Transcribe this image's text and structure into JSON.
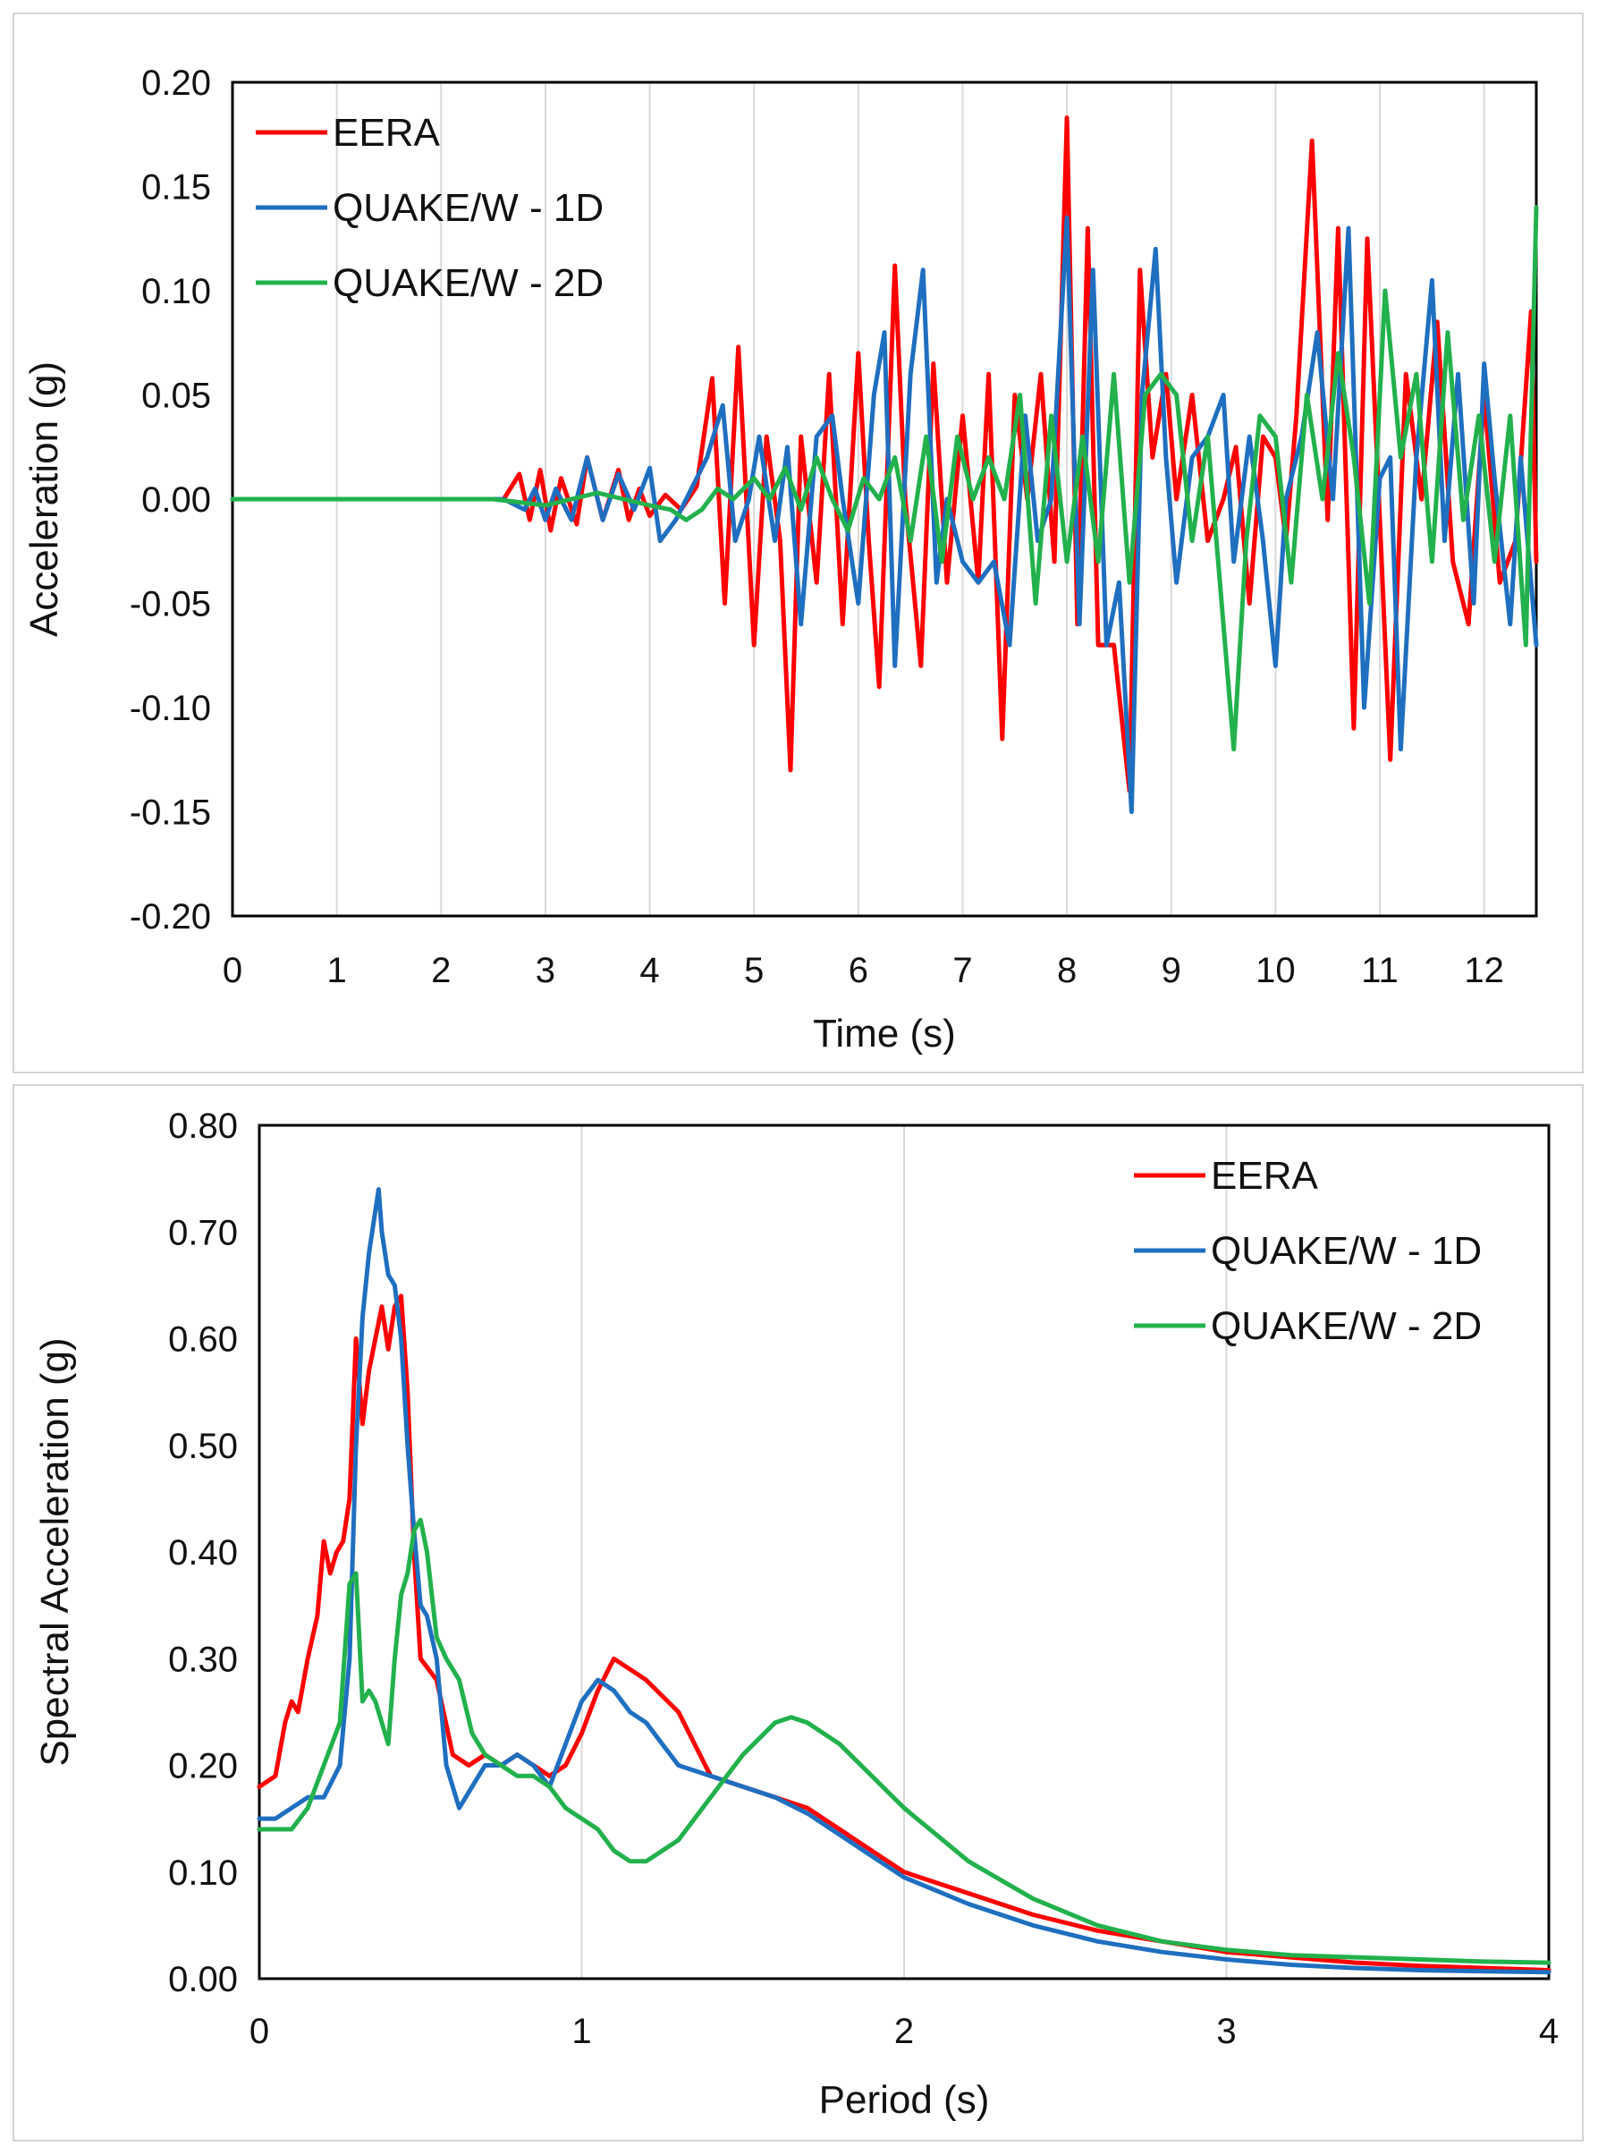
{
  "chart_data": [
    {
      "type": "line",
      "title": "",
      "xlabel": "Time (s)",
      "ylabel": "Acceleration (g)",
      "xlim": [
        0,
        12.5
      ],
      "ylim": [
        -0.2,
        0.2
      ],
      "x_ticks": [
        "0",
        "1",
        "2",
        "3",
        "4",
        "5",
        "6",
        "7",
        "8",
        "9",
        "10",
        "11",
        "12"
      ],
      "x_tick_values": [
        0,
        1,
        2,
        3,
        4,
        5,
        6,
        7,
        8,
        9,
        10,
        11,
        12
      ],
      "y_ticks": [
        "0.20",
        "0.15",
        "0.10",
        "0.05",
        "0.00",
        "-0.05",
        "-0.10",
        "-0.15",
        "-0.20"
      ],
      "y_tick_values": [
        0.2,
        0.15,
        0.1,
        0.05,
        0,
        -0.05,
        -0.1,
        -0.15,
        -0.2
      ],
      "grid": "vertical",
      "legend_position": "top-left",
      "series": [
        {
          "name": "EERA",
          "color": "#ff0000",
          "x": [
            0,
            2.6,
            2.75,
            2.85,
            2.95,
            3.05,
            3.15,
            3.3,
            3.4,
            3.55,
            3.7,
            3.8,
            3.9,
            4.0,
            4.15,
            4.3,
            4.45,
            4.6,
            4.72,
            4.85,
            5.0,
            5.12,
            5.25,
            5.35,
            5.45,
            5.6,
            5.72,
            5.85,
            6.0,
            6.1,
            6.2,
            6.35,
            6.45,
            6.6,
            6.72,
            6.85,
            7.0,
            7.15,
            7.25,
            7.38,
            7.5,
            7.62,
            7.75,
            7.88,
            8.0,
            8.1,
            8.2,
            8.3,
            8.45,
            8.6,
            8.7,
            8.82,
            8.95,
            9.05,
            9.2,
            9.35,
            9.5,
            9.62,
            9.75,
            9.88,
            10.0,
            10.1,
            10.2,
            10.35,
            10.5,
            10.6,
            10.75,
            10.88,
            11.0,
            11.1,
            11.25,
            11.4,
            11.55,
            11.7,
            11.85,
            12.0,
            12.15,
            12.3,
            12.45,
            12.5
          ],
          "y": [
            0,
            0,
            0.012,
            -0.01,
            0.014,
            -0.015,
            0.01,
            -0.012,
            0.02,
            -0.01,
            0.014,
            -0.01,
            0.005,
            -0.008,
            0.002,
            -0.005,
            0.006,
            0.058,
            -0.05,
            0.073,
            -0.07,
            0.03,
            -0.02,
            -0.13,
            0.03,
            -0.04,
            0.06,
            -0.06,
            0.07,
            -0.02,
            -0.09,
            0.112,
            0.0,
            -0.08,
            0.065,
            -0.04,
            0.04,
            -0.04,
            0.06,
            -0.115,
            0.05,
            0.0,
            0.06,
            -0.03,
            0.183,
            -0.06,
            0.13,
            -0.07,
            -0.07,
            -0.14,
            0.11,
            0.02,
            0.06,
            0.0,
            0.05,
            -0.02,
            0.0,
            0.025,
            -0.05,
            0.03,
            0.02,
            -0.02,
            0.04,
            0.172,
            -0.01,
            0.13,
            -0.11,
            0.125,
            -0.01,
            -0.125,
            0.06,
            0.0,
            0.085,
            -0.03,
            -0.06,
            0.05,
            -0.04,
            -0.02,
            0.09,
            -0.03
          ]
        },
        {
          "name": "QUAKE/W - 1D",
          "color": "#1f6fc0",
          "x": [
            0,
            2.6,
            2.8,
            2.9,
            3.0,
            3.1,
            3.25,
            3.4,
            3.55,
            3.7,
            3.85,
            4.0,
            4.1,
            4.25,
            4.4,
            4.55,
            4.7,
            4.82,
            4.95,
            5.05,
            5.2,
            5.32,
            5.45,
            5.6,
            5.75,
            5.85,
            6.0,
            6.15,
            6.25,
            6.35,
            6.5,
            6.62,
            6.75,
            6.85,
            7.0,
            7.15,
            7.3,
            7.45,
            7.6,
            7.72,
            7.85,
            8.0,
            8.12,
            8.25,
            8.38,
            8.5,
            8.62,
            8.72,
            8.85,
            8.95,
            9.05,
            9.2,
            9.35,
            9.5,
            9.6,
            9.75,
            9.88,
            10.0,
            10.1,
            10.25,
            10.4,
            10.55,
            10.7,
            10.85,
            11.0,
            11.1,
            11.2,
            11.35,
            11.5,
            11.62,
            11.75,
            11.9,
            12.0,
            12.1,
            12.25,
            12.35,
            12.5
          ],
          "y": [
            0,
            0,
            -0.005,
            0.005,
            -0.01,
            0.005,
            -0.01,
            0.02,
            -0.01,
            0.012,
            -0.005,
            0.015,
            -0.02,
            -0.01,
            0.005,
            0.02,
            0.045,
            -0.02,
            0.0,
            0.03,
            -0.02,
            0.025,
            -0.06,
            0.03,
            0.04,
            0.0,
            -0.05,
            0.05,
            0.08,
            -0.08,
            0.06,
            0.11,
            -0.04,
            0.0,
            -0.03,
            -0.04,
            -0.03,
            -0.07,
            0.04,
            -0.02,
            0.0,
            0.135,
            -0.06,
            0.11,
            -0.07,
            -0.04,
            -0.15,
            0.05,
            0.12,
            0.02,
            -0.04,
            0.02,
            0.03,
            0.05,
            -0.03,
            0.03,
            -0.02,
            -0.08,
            0.0,
            0.03,
            0.08,
            0.0,
            0.13,
            -0.1,
            0.01,
            0.02,
            -0.12,
            0.02,
            0.105,
            -0.02,
            0.06,
            -0.05,
            0.065,
            0.01,
            -0.06,
            0.02,
            -0.07
          ]
        },
        {
          "name": "QUAKE/W - 2D",
          "color": "#22b14c",
          "x": [
            0,
            2.5,
            3.0,
            3.5,
            4.0,
            4.2,
            4.35,
            4.5,
            4.65,
            4.8,
            5.0,
            5.15,
            5.3,
            5.45,
            5.6,
            5.75,
            5.9,
            6.05,
            6.2,
            6.35,
            6.5,
            6.65,
            6.8,
            6.95,
            7.1,
            7.25,
            7.4,
            7.55,
            7.7,
            7.85,
            8.0,
            8.15,
            8.3,
            8.45,
            8.6,
            8.75,
            8.9,
            9.05,
            9.2,
            9.35,
            9.5,
            9.6,
            9.72,
            9.85,
            10.0,
            10.15,
            10.3,
            10.45,
            10.6,
            10.75,
            10.9,
            11.05,
            11.2,
            11.35,
            11.5,
            11.65,
            11.8,
            11.95,
            12.1,
            12.25,
            12.4,
            12.5
          ],
          "y": [
            0,
            0,
            -0.003,
            0.003,
            -0.003,
            -0.005,
            -0.01,
            -0.005,
            0.005,
            0.0,
            0.01,
            0.0,
            0.015,
            -0.005,
            0.02,
            0.0,
            -0.015,
            0.01,
            0.0,
            0.02,
            -0.02,
            0.03,
            -0.03,
            0.03,
            0.0,
            0.02,
            0.0,
            0.05,
            -0.05,
            0.04,
            -0.03,
            0.03,
            -0.03,
            0.06,
            -0.04,
            0.05,
            0.06,
            0.05,
            -0.02,
            0.03,
            -0.06,
            -0.12,
            -0.02,
            0.04,
            0.03,
            -0.04,
            0.05,
            0.0,
            0.07,
            0.02,
            -0.05,
            0.1,
            0.02,
            0.06,
            -0.03,
            0.08,
            -0.01,
            0.04,
            -0.03,
            0.04,
            -0.07,
            0.14
          ]
        }
      ]
    },
    {
      "type": "line",
      "title": "",
      "xlabel": "Period (s)",
      "ylabel": "Spectral Acceleration (g)",
      "xlim": [
        0,
        4
      ],
      "ylim": [
        0,
        0.8
      ],
      "x_ticks": [
        "0",
        "1",
        "2",
        "3",
        "4"
      ],
      "x_tick_values": [
        0,
        1,
        2,
        3,
        4
      ],
      "y_ticks": [
        "0.80",
        "0.70",
        "0.60",
        "0.50",
        "0.40",
        "0.30",
        "0.20",
        "0.10",
        "0.00"
      ],
      "y_tick_values": [
        0.8,
        0.7,
        0.6,
        0.5,
        0.4,
        0.3,
        0.2,
        0.1,
        0
      ],
      "grid": "vertical",
      "legend_position": "top-right",
      "series": [
        {
          "name": "EERA",
          "color": "#ff0000",
          "x": [
            0,
            0.05,
            0.08,
            0.1,
            0.12,
            0.15,
            0.18,
            0.2,
            0.22,
            0.24,
            0.26,
            0.28,
            0.3,
            0.32,
            0.34,
            0.36,
            0.38,
            0.4,
            0.42,
            0.44,
            0.46,
            0.48,
            0.5,
            0.55,
            0.6,
            0.65,
            0.7,
            0.75,
            0.8,
            0.85,
            0.9,
            0.95,
            1.0,
            1.05,
            1.1,
            1.15,
            1.2,
            1.3,
            1.4,
            1.5,
            1.6,
            1.7,
            1.8,
            1.9,
            2.0,
            2.2,
            2.4,
            2.6,
            2.8,
            3.0,
            3.2,
            3.4,
            3.6,
            3.8,
            4.0
          ],
          "y": [
            0.18,
            0.19,
            0.24,
            0.26,
            0.25,
            0.3,
            0.34,
            0.41,
            0.38,
            0.4,
            0.41,
            0.45,
            0.6,
            0.52,
            0.57,
            0.6,
            0.63,
            0.59,
            0.63,
            0.64,
            0.55,
            0.4,
            0.3,
            0.28,
            0.21,
            0.2,
            0.21,
            0.2,
            0.21,
            0.2,
            0.19,
            0.2,
            0.23,
            0.27,
            0.3,
            0.29,
            0.28,
            0.25,
            0.19,
            0.18,
            0.17,
            0.16,
            0.14,
            0.12,
            0.1,
            0.08,
            0.06,
            0.045,
            0.035,
            0.025,
            0.02,
            0.015,
            0.012,
            0.01,
            0.008
          ]
        },
        {
          "name": "QUAKE/W - 1D",
          "color": "#1f6fc0",
          "x": [
            0,
            0.05,
            0.1,
            0.15,
            0.2,
            0.25,
            0.28,
            0.3,
            0.32,
            0.34,
            0.36,
            0.37,
            0.38,
            0.4,
            0.42,
            0.44,
            0.46,
            0.48,
            0.5,
            0.52,
            0.55,
            0.58,
            0.62,
            0.66,
            0.7,
            0.75,
            0.8,
            0.85,
            0.9,
            0.95,
            1.0,
            1.05,
            1.1,
            1.15,
            1.2,
            1.25,
            1.3,
            1.4,
            1.5,
            1.6,
            1.7,
            1.8,
            1.9,
            2.0,
            2.2,
            2.4,
            2.6,
            2.8,
            3.0,
            3.2,
            3.4,
            3.6,
            3.8,
            4.0
          ],
          "y": [
            0.15,
            0.15,
            0.16,
            0.17,
            0.17,
            0.2,
            0.3,
            0.5,
            0.62,
            0.68,
            0.72,
            0.74,
            0.7,
            0.66,
            0.65,
            0.6,
            0.5,
            0.42,
            0.35,
            0.34,
            0.3,
            0.2,
            0.16,
            0.18,
            0.2,
            0.2,
            0.21,
            0.2,
            0.18,
            0.22,
            0.26,
            0.28,
            0.27,
            0.25,
            0.24,
            0.22,
            0.2,
            0.19,
            0.18,
            0.17,
            0.155,
            0.135,
            0.115,
            0.095,
            0.07,
            0.05,
            0.035,
            0.025,
            0.018,
            0.013,
            0.01,
            0.008,
            0.007,
            0.006
          ]
        },
        {
          "name": "QUAKE/W - 2D",
          "color": "#22b14c",
          "x": [
            0,
            0.05,
            0.1,
            0.15,
            0.2,
            0.25,
            0.28,
            0.3,
            0.32,
            0.34,
            0.36,
            0.38,
            0.4,
            0.42,
            0.44,
            0.46,
            0.48,
            0.5,
            0.52,
            0.55,
            0.58,
            0.62,
            0.66,
            0.7,
            0.75,
            0.8,
            0.85,
            0.9,
            0.95,
            1.0,
            1.05,
            1.1,
            1.15,
            1.2,
            1.3,
            1.4,
            1.5,
            1.6,
            1.65,
            1.7,
            1.8,
            1.9,
            2.0,
            2.2,
            2.4,
            2.6,
            2.8,
            3.0,
            3.2,
            3.4,
            3.6,
            3.8,
            4.0
          ],
          "y": [
            0.14,
            0.14,
            0.14,
            0.16,
            0.2,
            0.24,
            0.37,
            0.38,
            0.26,
            0.27,
            0.26,
            0.24,
            0.22,
            0.3,
            0.36,
            0.38,
            0.42,
            0.43,
            0.4,
            0.32,
            0.3,
            0.28,
            0.23,
            0.21,
            0.2,
            0.19,
            0.19,
            0.18,
            0.16,
            0.15,
            0.14,
            0.12,
            0.11,
            0.11,
            0.13,
            0.17,
            0.21,
            0.24,
            0.245,
            0.24,
            0.22,
            0.19,
            0.16,
            0.11,
            0.075,
            0.05,
            0.035,
            0.027,
            0.022,
            0.02,
            0.018,
            0.016,
            0.015
          ]
        }
      ]
    }
  ]
}
